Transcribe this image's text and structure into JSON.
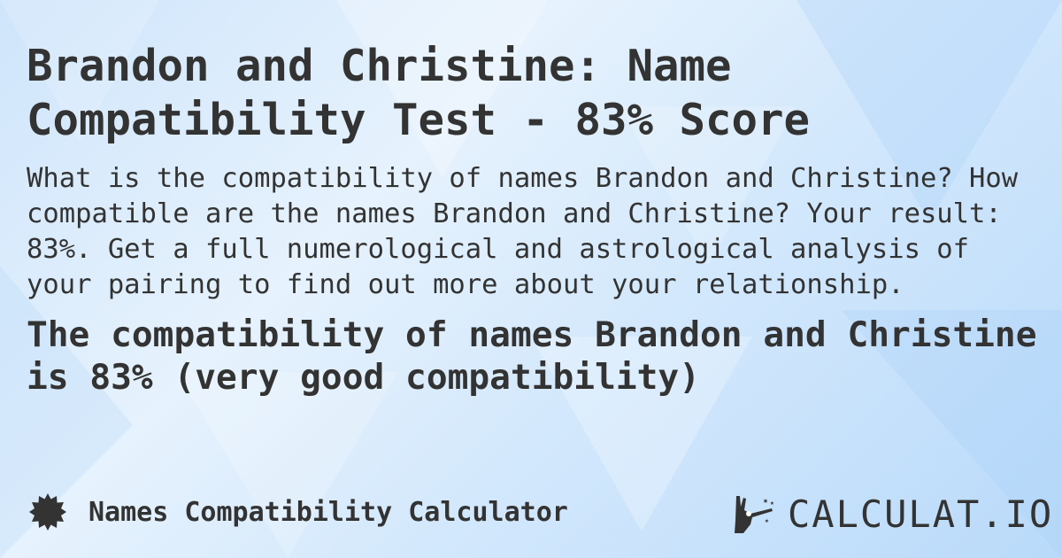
{
  "title": "Brandon and Christine: Name Compatibility Test - 83% Score",
  "description": "What is the compatibility of names Brandon and Christine? How compatible are the names Brandon and Christine? Your result: 83%. Get a full numerological and astrological analysis of your pairing to find out more about your relationship.",
  "result": "The compatibility of names Brandon and Christine is 83% (very good compatibility)",
  "score_percent": 83,
  "footer": {
    "calculator_label": "Names Compatibility Calculator",
    "calculator_icon": "badge-icon",
    "logo_text": "CALCULAT.IO",
    "logo_icon": "magic-wand-hand-icon"
  },
  "colors": {
    "text": "#333333",
    "background": "#d3e8fc"
  }
}
